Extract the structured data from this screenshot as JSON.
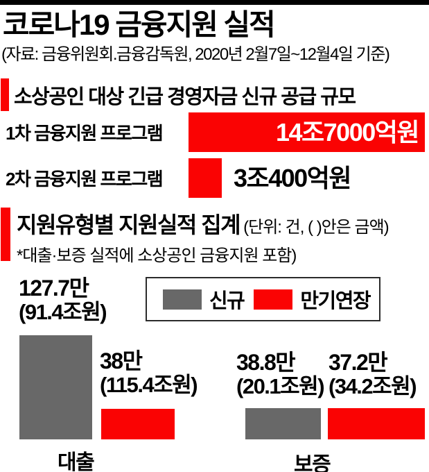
{
  "header": {
    "title": "코로나19 금융지원 실적",
    "source_note": "(자료: 금융위원회.금융감독원, 2020년 2월7일~12월4일 기준)"
  },
  "colors": {
    "accent_red": "#fa0303",
    "bar_gray": "#686868",
    "top_rule_black": "#000000"
  },
  "chart_data": [
    {
      "type": "bar",
      "orientation": "horizontal",
      "title": "소상공인 대상 긴급 경영자금 신규 공급 규모",
      "categories": [
        "1차 금융지원 프로그램",
        "2차 금융지원 프로그램"
      ],
      "values_trillion_won": [
        14.7,
        3.04
      ],
      "value_labels": [
        "14조7000억원",
        "3조400억원"
      ],
      "bar_color": "#fa0303",
      "axis": "none",
      "grid": false
    },
    {
      "type": "bar",
      "orientation": "vertical",
      "title": "지원유형별 지원실적 집계",
      "unit_note": "(단위: 건, (  )안은 금액)",
      "footnote": "*대출·보증 실적에 소상공인 금융지원 포함)",
      "categories": [
        "대출",
        "보증"
      ],
      "series": [
        {
          "name": "신규",
          "color": "#686868",
          "counts_10k": [
            127.7,
            38.8
          ],
          "count_labels": [
            "127.7만",
            "38.8만"
          ],
          "amounts_trillion_won": [
            91.4,
            20.1
          ],
          "amount_labels": [
            "(91.4조원)",
            "(20.1조원)"
          ]
        },
        {
          "name": "만기연장",
          "color": "#fa0303",
          "counts_10k": [
            38,
            37.2
          ],
          "count_labels": [
            "38만",
            "37.2만"
          ],
          "amounts_trillion_won": [
            115.4,
            34.2
          ],
          "amount_labels": [
            "(115.4조원)",
            "(34.2조원)"
          ]
        }
      ],
      "legend_position": "top-right",
      "bar_height_encodes": "counts_10k",
      "axis": "none",
      "grid": false
    }
  ]
}
